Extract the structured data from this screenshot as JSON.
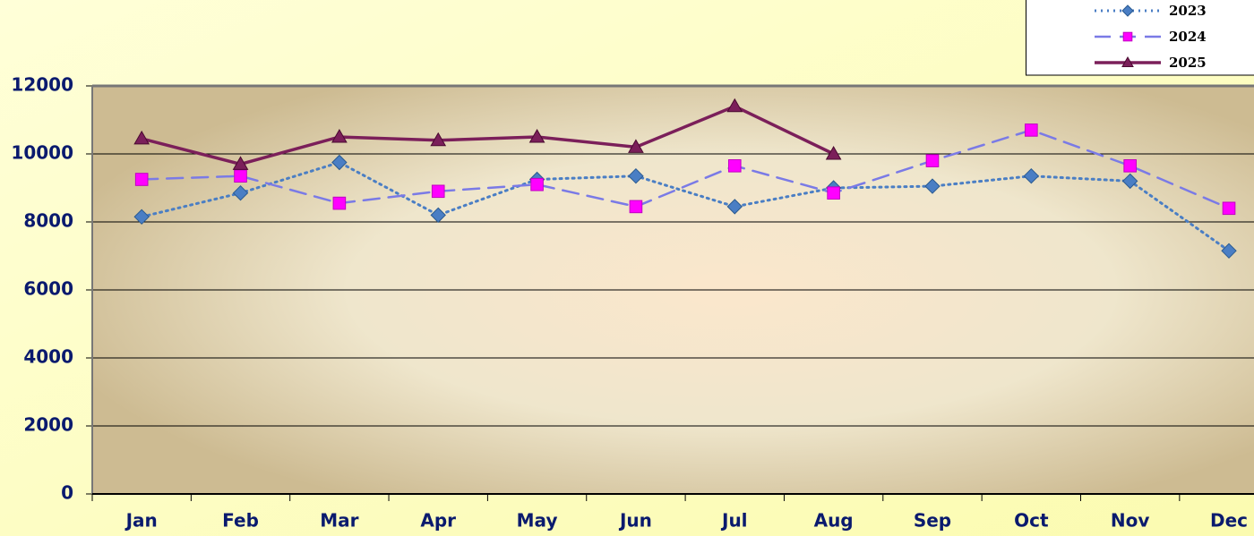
{
  "chart_data": {
    "type": "line",
    "categories": [
      "Jan",
      "Feb",
      "Mar",
      "Apr",
      "May",
      "Jun",
      "Jul",
      "Aug",
      "Sep",
      "Oct",
      "Nov",
      "Dec"
    ],
    "series": [
      {
        "name": "2023",
        "color": "#4a7ec4",
        "dash": "dotted",
        "marker": "diamond",
        "values": [
          8150,
          8850,
          9750,
          8200,
          9250,
          9350,
          8450,
          9000,
          9050,
          9350,
          9200,
          7150
        ]
      },
      {
        "name": "2024",
        "color": "#7a7ae6",
        "dash": "dashed",
        "marker": "square",
        "marker_color": "#ff00ff",
        "values": [
          9250,
          9350,
          8550,
          8900,
          9100,
          8450,
          9650,
          8850,
          9800,
          10700,
          9650,
          8400
        ]
      },
      {
        "name": "2025",
        "color": "#7b1f5a",
        "dash": "solid",
        "marker": "triangle",
        "values": [
          10450,
          9700,
          10500,
          10400,
          10500,
          10200,
          11400,
          10000,
          null,
          null,
          null,
          null
        ]
      }
    ],
    "ylim": [
      0,
      12000
    ],
    "yticks": [
      0,
      2000,
      4000,
      6000,
      8000,
      10000,
      12000
    ],
    "grid": true,
    "legend": "top-right"
  }
}
